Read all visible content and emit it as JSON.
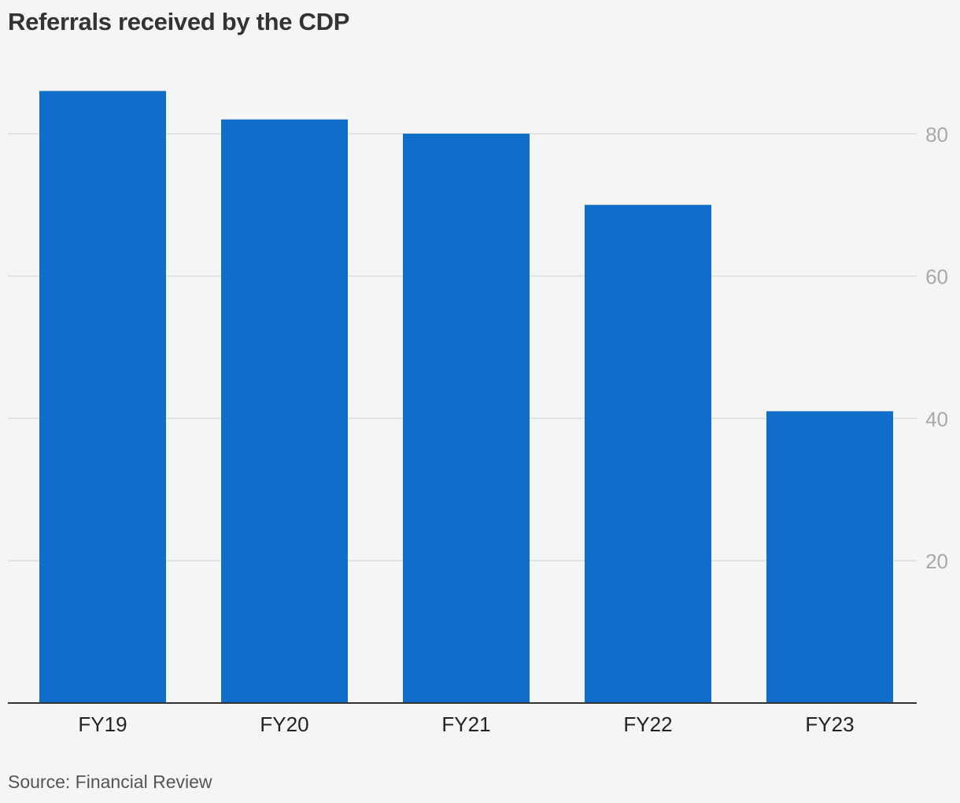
{
  "chart_data": {
    "type": "bar",
    "title": "Referrals received by the CDP",
    "source": "Source: Financial Review",
    "categories": [
      "FY19",
      "FY20",
      "FY21",
      "FY22",
      "FY23"
    ],
    "values": [
      86,
      82,
      80,
      70,
      41
    ],
    "ylim": [
      0,
      88
    ],
    "yticks": [
      20,
      40,
      60,
      80
    ],
    "ytick_labels": [
      "20",
      "40",
      "60",
      "80"
    ],
    "y_axis_side": "right",
    "grid": true,
    "xlabel": "",
    "ylabel": "",
    "bar_color": "#106dc9",
    "grid_color": "#dddddd",
    "axis_color": "#333333"
  }
}
